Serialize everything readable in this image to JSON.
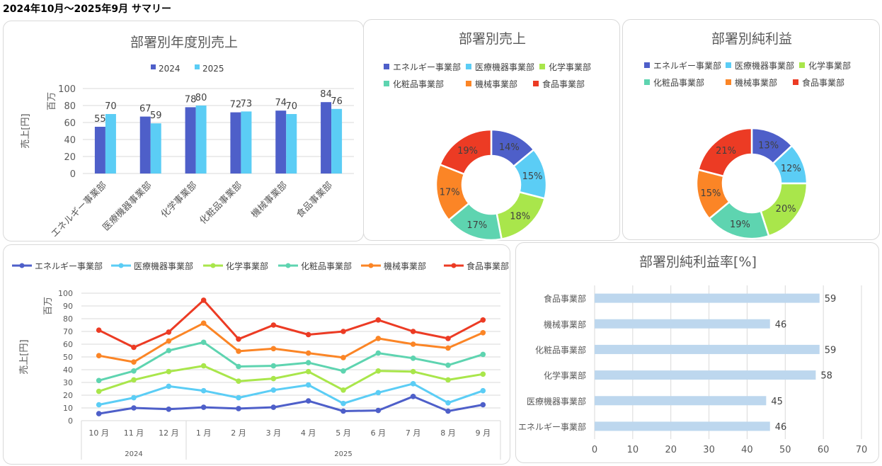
{
  "page_title": "2024年10月～2025年9月 サマリー",
  "chart_data": [
    {
      "type": "bar",
      "title": "部署別年度別売上",
      "categories": [
        "エネルギー事業部",
        "医療機器事業部",
        "化学事業部",
        "化粧品事業部",
        "機械事業部",
        "食品事業部"
      ],
      "series": [
        {
          "name": "2024",
          "values": [
            55,
            67,
            78,
            72,
            74,
            84
          ],
          "color": "#4e5fc9"
        },
        {
          "name": "2025",
          "values": [
            70,
            59,
            80,
            73,
            70,
            76
          ],
          "color": "#5bcdf5"
        }
      ],
      "ylabel": "売上[円]",
      "yunit": "百万",
      "ylim": [
        0,
        100
      ],
      "yticks": [
        0,
        20,
        40,
        60,
        80,
        100
      ],
      "legend": "top"
    },
    {
      "type": "pie",
      "title": "部署別売上",
      "categories": [
        "エネルギー事業部",
        "医療機器事業部",
        "化学事業部",
        "化粧品事業部",
        "機械事業部",
        "食品事業部"
      ],
      "values": [
        14,
        15,
        18,
        17,
        17,
        19
      ],
      "labels": [
        "14%",
        "15%",
        "18%",
        "17%",
        "17%",
        "19%"
      ],
      "colors": [
        "#4e5fc9",
        "#5bcdf5",
        "#a9e64b",
        "#5ed4b0",
        "#fb8526",
        "#ec3b24"
      ],
      "legend": "top"
    },
    {
      "type": "pie",
      "title": "部署別純利益",
      "categories": [
        "エネルギー事業部",
        "医療機器事業部",
        "化学事業部",
        "化粧品事業部",
        "機械事業部",
        "食品事業部"
      ],
      "values": [
        13,
        12,
        20,
        19,
        15,
        21
      ],
      "labels": [
        "13%",
        "12%",
        "20%",
        "19%",
        "15%",
        "21%"
      ],
      "colors": [
        "#4e5fc9",
        "#5bcdf5",
        "#a9e64b",
        "#5ed4b0",
        "#fb8526",
        "#ec3b24"
      ],
      "legend": "top"
    },
    {
      "type": "line",
      "title": "",
      "x": [
        "10 月",
        "11 月",
        "12 月",
        "1 月",
        "2 月",
        "3 月",
        "4 月",
        "5 月",
        "6 月",
        "7 月",
        "8 月",
        "9 月"
      ],
      "year_groups": [
        {
          "label": "2024",
          "count": 3
        },
        {
          "label": "2025",
          "count": 9
        }
      ],
      "series": [
        {
          "name": "エネルギー事業部",
          "color": "#4e5fc9",
          "values": [
            5.5,
            10,
            9,
            10.5,
            9.5,
            10.5,
            15.5,
            7.5,
            8,
            19,
            7.5,
            12.5
          ]
        },
        {
          "name": "医療機器事業部",
          "color": "#5bcdf5",
          "values": [
            12.5,
            18,
            27,
            23.5,
            18,
            24,
            28,
            13.5,
            22,
            29,
            14,
            23.5
          ]
        },
        {
          "name": "化学事業部",
          "color": "#a9e64b",
          "values": [
            23,
            32,
            38.5,
            43,
            31,
            33,
            38.5,
            24,
            39,
            38.5,
            32,
            36.5
          ]
        },
        {
          "name": "化粧品事業部",
          "color": "#5ed4b0",
          "values": [
            31.5,
            39,
            55,
            61.5,
            42.5,
            43,
            45.5,
            39,
            53,
            49,
            43.5,
            52
          ]
        },
        {
          "name": "機械事業部",
          "color": "#fb8526",
          "values": [
            51,
            46,
            62.5,
            76.5,
            54.5,
            56.5,
            53,
            49.5,
            64.5,
            60,
            57,
            69
          ]
        },
        {
          "name": "食品事業部",
          "color": "#ec3b24",
          "values": [
            71,
            57.5,
            69.5,
            94.5,
            64,
            75,
            67.5,
            70,
            79,
            70,
            64.5,
            79
          ]
        }
      ],
      "ylabel": "売上[円]",
      "yunit": "百万",
      "ylim": [
        0,
        100
      ],
      "yticks": [
        0,
        10,
        20,
        30,
        40,
        50,
        60,
        70,
        80,
        90,
        100
      ],
      "legend": "top"
    },
    {
      "type": "bar",
      "orientation": "horizontal",
      "title": "部署別純利益率[%]",
      "categories": [
        "食品事業部",
        "機械事業部",
        "化粧品事業部",
        "化学事業部",
        "医療機器事業部",
        "エネルギー事業部"
      ],
      "values": [
        59,
        46,
        59,
        58,
        45,
        46
      ],
      "color": "#bdd7ee",
      "xlim": [
        0,
        70
      ],
      "xticks": [
        0,
        10,
        20,
        30,
        40,
        50,
        60,
        70
      ]
    }
  ]
}
